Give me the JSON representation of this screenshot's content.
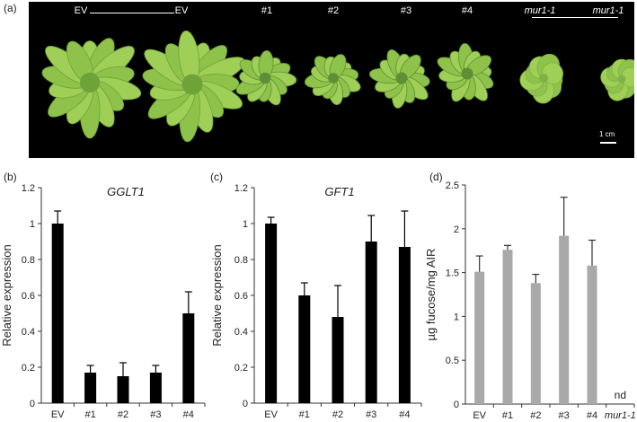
{
  "figure": {
    "panel_labels": [
      "(a)",
      "(b)",
      "(c)",
      "(d)"
    ],
    "photo": {
      "labels": [
        "EV",
        "EV",
        "#1",
        "#2",
        "#3",
        "#4",
        "mur1-1",
        "mur1-1"
      ],
      "scale_text": "1 cm"
    }
  },
  "colors": {
    "black_bars": "#000000",
    "grey_bars": "#a9a9a9",
    "photo_background": "#000000",
    "leaf_green": "#8fc24a"
  },
  "chart_data": [
    {
      "type": "bar",
      "title": "GGLT1",
      "ylabel": "Relative expression",
      "xlabel": "",
      "categories": [
        "EV",
        "#1",
        "#2",
        "#3",
        "#4"
      ],
      "values": [
        1.0,
        0.17,
        0.15,
        0.17,
        0.5
      ],
      "errors": [
        0.07,
        0.04,
        0.075,
        0.04,
        0.12
      ],
      "ylim": [
        0,
        1.2
      ],
      "yticks": [
        "0",
        "0.2",
        "0.4",
        "0.6",
        "0.8",
        "1",
        "1.2"
      ],
      "grid": false,
      "color": "#000000"
    },
    {
      "type": "bar",
      "title": "GFT1",
      "ylabel": "Relative expression",
      "xlabel": "",
      "categories": [
        "EV",
        "#1",
        "#2",
        "#3",
        "#4"
      ],
      "values": [
        1.0,
        0.6,
        0.48,
        0.9,
        0.87
      ],
      "errors": [
        0.035,
        0.07,
        0.175,
        0.145,
        0.2
      ],
      "ylim": [
        0,
        1.2
      ],
      "yticks": [
        "0",
        "0.2",
        "0.4",
        "0.6",
        "0.8",
        "1",
        "1.2"
      ],
      "grid": false,
      "color": "#000000"
    },
    {
      "type": "bar",
      "title": "",
      "ylabel": "µg fucose/mg AIR",
      "xlabel": "",
      "categories": [
        "EV",
        "#1",
        "#2",
        "#3",
        "#4",
        "mur1-1"
      ],
      "values": [
        1.51,
        1.76,
        1.38,
        1.92,
        1.58,
        null
      ],
      "errors": [
        0.18,
        0.05,
        0.1,
        0.44,
        0.29,
        null
      ],
      "ylim": [
        0,
        2.5
      ],
      "yticks": [
        "0",
        "0.5",
        "1",
        "1.5",
        "2",
        "2.5"
      ],
      "annotations": [
        "nd"
      ],
      "grid": false,
      "color": "#a9a9a9"
    }
  ]
}
